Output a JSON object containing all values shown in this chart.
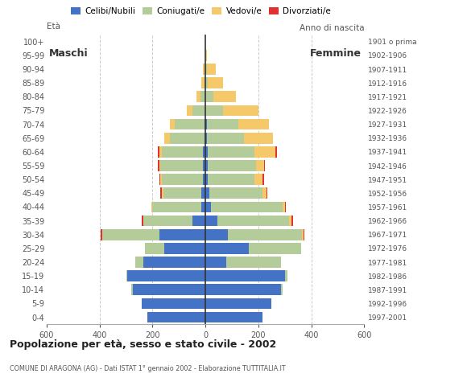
{
  "age_groups": [
    "0-4",
    "5-9",
    "10-14",
    "15-19",
    "20-24",
    "25-29",
    "30-34",
    "35-39",
    "40-44",
    "45-49",
    "50-54",
    "55-59",
    "60-64",
    "65-69",
    "70-74",
    "75-79",
    "80-84",
    "85-89",
    "90-94",
    "95-99",
    "100+"
  ],
  "birth_years": [
    "1997-2001",
    "1992-1996",
    "1987-1991",
    "1982-1986",
    "1977-1981",
    "1972-1976",
    "1967-1971",
    "1962-1966",
    "1957-1961",
    "1952-1956",
    "1947-1951",
    "1942-1946",
    "1937-1941",
    "1932-1936",
    "1927-1931",
    "1922-1926",
    "1917-1921",
    "1912-1916",
    "1907-1911",
    "1902-1906",
    "1901 o prima"
  ],
  "male": {
    "celibe": [
      220,
      240,
      275,
      295,
      235,
      155,
      175,
      50,
      15,
      15,
      10,
      10,
      10,
      5,
      5,
      0,
      0,
      0,
      0,
      0,
      0
    ],
    "coniugato": [
      0,
      0,
      5,
      5,
      30,
      75,
      215,
      185,
      185,
      145,
      155,
      160,
      155,
      130,
      110,
      50,
      20,
      5,
      5,
      0,
      0
    ],
    "vedovo": [
      0,
      0,
      0,
      0,
      0,
      0,
      0,
      0,
      5,
      5,
      5,
      5,
      10,
      20,
      20,
      20,
      15,
      10,
      5,
      0,
      0
    ],
    "divorziato": [
      0,
      0,
      0,
      0,
      0,
      0,
      5,
      5,
      0,
      5,
      5,
      5,
      5,
      0,
      0,
      0,
      0,
      0,
      0,
      0,
      0
    ]
  },
  "female": {
    "celibe": [
      215,
      250,
      285,
      300,
      80,
      165,
      85,
      45,
      20,
      15,
      10,
      10,
      10,
      5,
      5,
      0,
      0,
      0,
      0,
      0,
      0
    ],
    "coniugato": [
      0,
      0,
      5,
      10,
      205,
      195,
      280,
      270,
      270,
      200,
      175,
      180,
      175,
      140,
      120,
      65,
      30,
      10,
      5,
      0,
      0
    ],
    "vedovo": [
      0,
      0,
      0,
      0,
      0,
      0,
      5,
      10,
      10,
      15,
      30,
      30,
      80,
      110,
      115,
      135,
      85,
      55,
      35,
      5,
      0
    ],
    "divorziato": [
      0,
      0,
      0,
      0,
      0,
      0,
      5,
      5,
      5,
      5,
      5,
      5,
      5,
      0,
      0,
      0,
      0,
      0,
      0,
      0,
      0
    ]
  },
  "colors": {
    "celibe": "#4472c4",
    "coniugato": "#b3cc99",
    "vedovo": "#f5c96a",
    "divorziato": "#e03030"
  },
  "legend_labels": [
    "Celibi/Nubili",
    "Coniugati/e",
    "Vedovi/e",
    "Divorziati/e"
  ],
  "title": "Popolazione per età, sesso e stato civile - 2002",
  "subtitle": "COMUNE DI ARAGONA (AG) - Dati ISTAT 1° gennaio 2002 - Elaborazione TUTTITALIA.IT",
  "label_eta": "Età",
  "label_anno": "Anno di nascita",
  "xlim": 600,
  "background_color": "#ffffff",
  "label_maschi": "Maschi",
  "label_femmine": "Femmine"
}
